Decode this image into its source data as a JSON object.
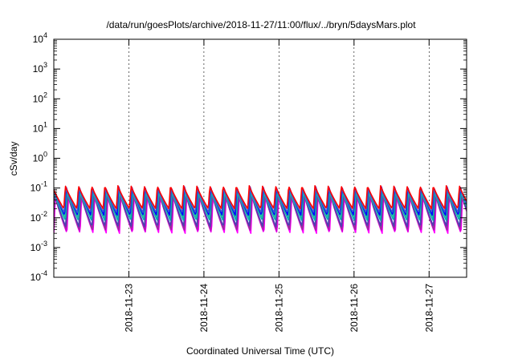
{
  "chart_data": {
    "type": "line",
    "title": "/data/run/goesPlots/archive/2018-11-27/11:00/flux/../bryn/5daysMars.plot",
    "xlabel": "Coordinated Universal Time (UTC)",
    "ylabel": "cSv/day",
    "y_scale": "log",
    "ylim": [
      0.0001,
      10000
    ],
    "y_ticks": [
      {
        "value": 0.0001,
        "base": "10",
        "exp": "-4"
      },
      {
        "value": 0.001,
        "base": "10",
        "exp": "-3"
      },
      {
        "value": 0.01,
        "base": "10",
        "exp": "-2"
      },
      {
        "value": 0.1,
        "base": "10",
        "exp": "-1"
      },
      {
        "value": 1,
        "base": "10",
        "exp": "0"
      },
      {
        "value": 10,
        "base": "10",
        "exp": "1"
      },
      {
        "value": 100,
        "base": "10",
        "exp": "2"
      },
      {
        "value": 1000,
        "base": "10",
        "exp": "3"
      },
      {
        "value": 10000,
        "base": "10",
        "exp": "4"
      }
    ],
    "xlim": [
      "2018-11-22T00:00",
      "2018-11-27T12:00"
    ],
    "x_ticks": [
      "2018-11-23",
      "2018-11-24",
      "2018-11-25",
      "2018-11-26",
      "2018-11-27"
    ],
    "grid": "vertical dashed at date ticks",
    "legend": "none",
    "oscillation_period_hours": 4.2,
    "series": [
      {
        "color": "#ff00ff",
        "peak": 0.055,
        "trough": 0.003
      },
      {
        "color": "#cc00cc",
        "peak": 0.06,
        "trough": 0.0035
      },
      {
        "color": "#993399",
        "peak": 0.065,
        "trough": 0.004
      },
      {
        "color": "#4b3fb5",
        "peak": 0.075,
        "trough": 0.005
      },
      {
        "color": "#00b0b0",
        "peak": 0.09,
        "trough": 0.008
      },
      {
        "color": "#20c0a0",
        "peak": 0.08,
        "trough": 0.01
      },
      {
        "color": "#0000ff",
        "peak": 0.11,
        "trough": 0.012
      },
      {
        "color": "#3a5fcd",
        "peak": 0.1,
        "trough": 0.015
      },
      {
        "color": "#ff0000",
        "peak": 0.12,
        "trough": 0.02
      }
    ]
  }
}
